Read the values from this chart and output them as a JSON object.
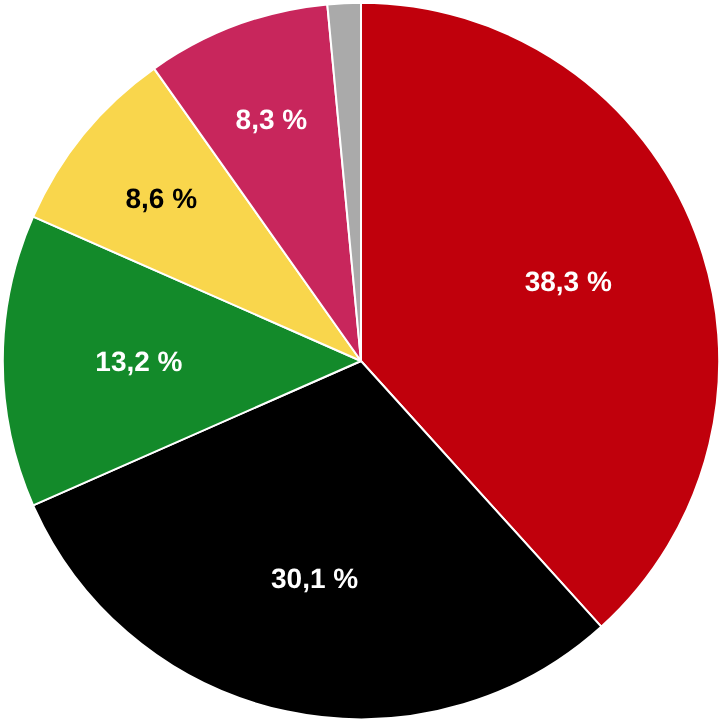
{
  "chart_data": {
    "type": "pie",
    "categories": [
      null,
      null,
      null,
      null,
      null,
      null
    ],
    "values": [
      38.3,
      30.1,
      13.2,
      8.6,
      8.3,
      1.5
    ],
    "colors": [
      "#c0000c",
      "#000000",
      "#138a2a",
      "#f9d64c",
      "#c8265c",
      "#aaaaaa"
    ],
    "value_labels": [
      "38,3 %",
      "30,1 %",
      "13,2 %",
      "8,6 %",
      "8,3 %",
      null
    ]
  }
}
